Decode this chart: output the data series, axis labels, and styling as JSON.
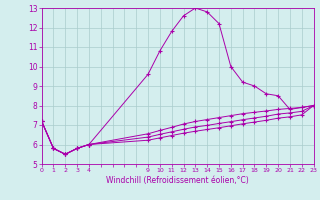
{
  "xlabel": "Windchill (Refroidissement éolien,°C)",
  "background_color": "#d4eeee",
  "line_color": "#aa00aa",
  "grid_color": "#aacccc",
  "xlim": [
    0,
    23
  ],
  "ylim": [
    5,
    13
  ],
  "yticks": [
    5,
    6,
    7,
    8,
    9,
    10,
    11,
    12,
    13
  ],
  "xticks": [
    0,
    1,
    2,
    3,
    4,
    5,
    6,
    7,
    8,
    9,
    10,
    11,
    12,
    13,
    14,
    15,
    16,
    17,
    18,
    19,
    20,
    21,
    22,
    23
  ],
  "xtick_labels": [
    "0",
    "1",
    "2",
    "3",
    "4",
    "",
    "",
    "",
    "",
    "9",
    "10",
    "11",
    "12",
    "13",
    "14",
    "15",
    "16",
    "17",
    "18",
    "19",
    "20",
    "21",
    "22",
    "23"
  ],
  "series": [
    {
      "x": [
        0,
        1,
        2,
        3,
        4,
        9,
        10,
        11,
        12,
        13,
        14,
        15,
        16,
        17,
        18,
        19,
        20,
        21,
        22,
        23
      ],
      "y": [
        7.2,
        5.8,
        5.5,
        5.8,
        6.0,
        9.6,
        10.8,
        11.8,
        12.6,
        13.0,
        12.8,
        12.2,
        10.0,
        9.2,
        9.0,
        8.6,
        8.5,
        7.8,
        7.9,
        8.0
      ]
    },
    {
      "x": [
        0,
        1,
        2,
        3,
        4,
        9,
        10,
        11,
        12,
        13,
        14,
        15,
        16,
        17,
        18,
        19,
        20,
        21,
        22,
        23
      ],
      "y": [
        7.2,
        5.8,
        5.5,
        5.8,
        6.0,
        6.55,
        6.72,
        6.88,
        7.05,
        7.18,
        7.28,
        7.38,
        7.48,
        7.58,
        7.65,
        7.72,
        7.8,
        7.85,
        7.9,
        8.0
      ]
    },
    {
      "x": [
        0,
        1,
        2,
        3,
        4,
        9,
        10,
        11,
        12,
        13,
        14,
        15,
        16,
        17,
        18,
        19,
        20,
        21,
        22,
        23
      ],
      "y": [
        7.2,
        5.8,
        5.5,
        5.8,
        6.0,
        6.38,
        6.52,
        6.65,
        6.78,
        6.9,
        6.98,
        7.08,
        7.17,
        7.27,
        7.36,
        7.45,
        7.56,
        7.62,
        7.7,
        8.0
      ]
    },
    {
      "x": [
        0,
        1,
        2,
        3,
        4,
        9,
        10,
        11,
        12,
        13,
        14,
        15,
        16,
        17,
        18,
        19,
        20,
        21,
        22,
        23
      ],
      "y": [
        7.2,
        5.8,
        5.5,
        5.8,
        6.0,
        6.22,
        6.34,
        6.46,
        6.58,
        6.68,
        6.77,
        6.86,
        6.96,
        7.06,
        7.15,
        7.24,
        7.35,
        7.42,
        7.52,
        8.0
      ]
    }
  ]
}
